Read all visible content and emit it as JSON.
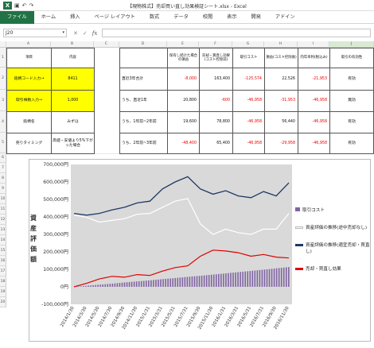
{
  "window": {
    "title": "【現物株式】売却買い直し効果検証シート.xlsx - Excel",
    "logo": "X"
  },
  "ribbon": {
    "tabs": [
      "ファイル",
      "ホーム",
      "挿入",
      "ページ レイアウト",
      "数式",
      "データ",
      "校閲",
      "表示",
      "開発",
      "アドイン"
    ]
  },
  "formula_bar": {
    "name_box": "J20",
    "cancel": "✕",
    "enter": "✓",
    "fx": "fx",
    "value": ""
  },
  "columns": [
    "A",
    "B",
    "C",
    "D",
    "E",
    "F",
    "G",
    "H",
    "I",
    "J"
  ],
  "rows": [
    "1",
    "2",
    "3",
    "4",
    "5",
    "6",
    "7",
    "8",
    "9",
    "10",
    "11",
    "12",
    "13",
    "14",
    "15",
    "16",
    "17",
    "18",
    "19",
    "20"
  ],
  "left_table": {
    "header": {
      "item": "項目",
      "content": "内容"
    },
    "rows": [
      {
        "label": "銘柄コード入力→",
        "value": "8411"
      },
      {
        "label": "取引株数入力→",
        "value": "1,000"
      },
      {
        "label": "銘柄名",
        "value": "みずほ"
      },
      {
        "label": "売りタイミング",
        "value": "高値・安値より5%下がった場合"
      }
    ]
  },
  "right_table": {
    "headers": [
      "保有し続けた場合の損益",
      "売却・買直し効果(コスト控除前)",
      "取引コスト",
      "損益(コスト控除後)",
      "内年率利(税込み)",
      "取引の有効性"
    ],
    "rows": [
      {
        "period": "直近3年合計",
        "values": [
          "-8,000",
          "163,400",
          "-125,574",
          "22,526",
          "-21,953",
          "有効"
        ]
      },
      {
        "period": "うち、直近1年",
        "values": [
          "20,800",
          "-600",
          "-46,958",
          "-31,953",
          "-46,958",
          "無効"
        ]
      },
      {
        "period": "うち、1年前~2年前",
        "values": [
          "19,600",
          "78,800",
          "-46,958",
          "56,440",
          "-46,958",
          "有効"
        ]
      },
      {
        "period": "うち、2年前~3年前",
        "values": [
          "-48,400",
          "65,400",
          "-46,958",
          "-29,958",
          "-46,958",
          "有効"
        ]
      }
    ]
  },
  "chart_data": {
    "type": "line",
    "ylabel": "資産評価額",
    "ylim": [
      -100000,
      700000
    ],
    "yticks": [
      "700,000円",
      "600,000円",
      "500,000円",
      "400,000円",
      "300,000円",
      "200,000円",
      "100,000円",
      "0円",
      "-100,000円"
    ],
    "x": [
      "2014/1/30",
      "2014/3/30",
      "2014/5/30",
      "2014/7/30",
      "2014/9/30",
      "2014/11/30",
      "2015/1/31",
      "2015/3/31",
      "2015/5/31",
      "2015/7/31",
      "2015/9/30",
      "2015/11/30",
      "2016/1/31",
      "2016/3/31",
      "2016/5/31",
      "2016/7/31",
      "2016/9/30",
      "2016/11/30"
    ],
    "series": [
      {
        "name": "取引コスト",
        "kind": "bar",
        "color": "#8064a2",
        "values": [
          0,
          6000,
          12000,
          18000,
          25000,
          31000,
          37000,
          44000,
          50000,
          57000,
          63000,
          70000,
          77000,
          84000,
          91000,
          98000,
          106000,
          113000
        ]
      },
      {
        "name": "資産評価の推移(途中売却なし)",
        "kind": "line",
        "color": "#ffffff",
        "values": [
          410000,
          398000,
          370000,
          380000,
          390000,
          415000,
          420000,
          455000,
          490000,
          505000,
          360000,
          300000,
          330000,
          310000,
          300000,
          330000,
          330000,
          420000
        ]
      },
      {
        "name": "資産評価の推移(適宜売却・買直し)",
        "kind": "line",
        "color": "#1f3864",
        "values": [
          420000,
          410000,
          420000,
          440000,
          455000,
          480000,
          490000,
          560000,
          600000,
          630000,
          560000,
          530000,
          550000,
          520000,
          510000,
          545000,
          520000,
          595000
        ]
      },
      {
        "name": "売却・買直し効果",
        "kind": "line",
        "color": "#e00000",
        "values": [
          0,
          20000,
          45000,
          60000,
          55000,
          70000,
          65000,
          90000,
          110000,
          120000,
          175000,
          210000,
          205000,
          195000,
          175000,
          185000,
          170000,
          165000
        ]
      }
    ],
    "legend_position": "right",
    "grid": false
  },
  "colors": {
    "excel_green": "#217346",
    "yellow": "#ffff00",
    "plot_bg": "#d9d9d9",
    "negative": "#ee0000"
  }
}
